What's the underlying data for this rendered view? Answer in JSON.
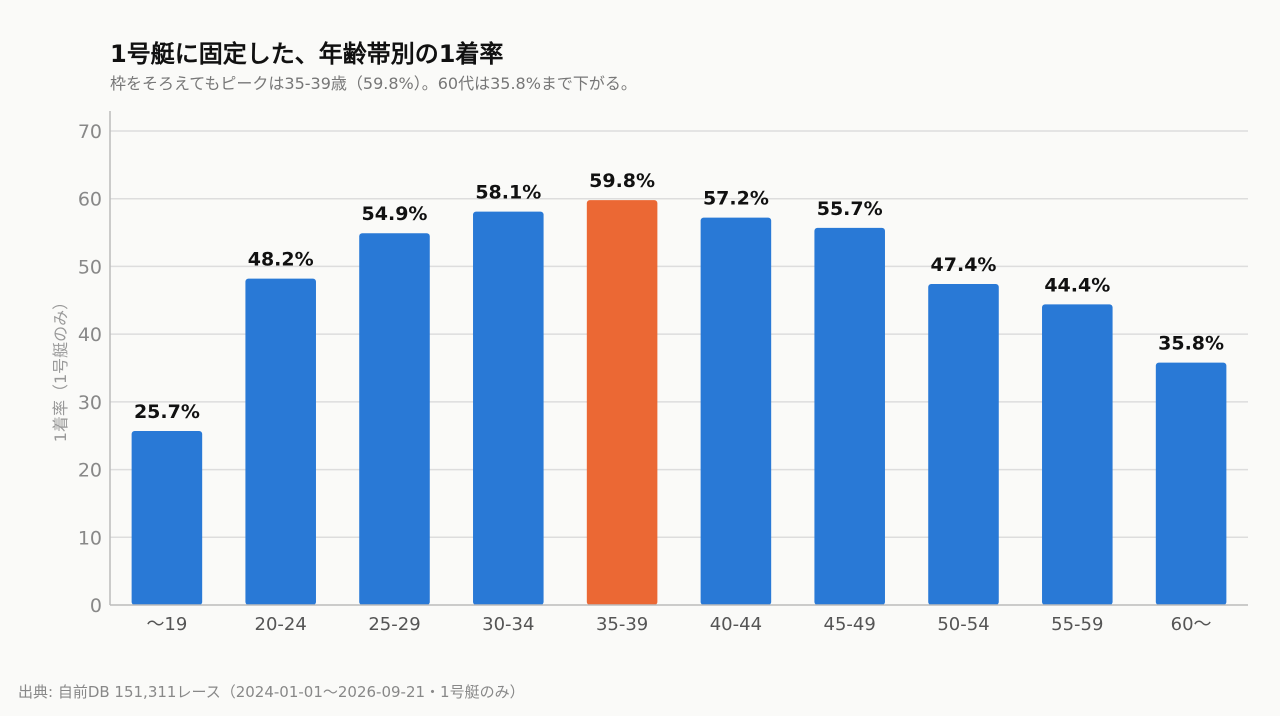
{
  "chart_data": {
    "type": "bar",
    "title": "1号艇に固定した、年齢帯別の1着率",
    "subtitle": "枠をそろえてもピークは35-39歳（59.8%）。60代は35.8%まで下がる。",
    "ylabel": "1着率（1号艇のみ）",
    "xlabel": "",
    "categories": [
      "〜19",
      "20-24",
      "25-29",
      "30-34",
      "35-39",
      "40-44",
      "45-49",
      "50-54",
      "55-59",
      "60〜"
    ],
    "values": [
      25.7,
      48.2,
      54.9,
      58.1,
      59.8,
      57.2,
      55.7,
      47.4,
      44.4,
      35.8
    ],
    "value_labels": [
      "25.7%",
      "48.2%",
      "54.9%",
      "58.1%",
      "59.8%",
      "57.2%",
      "55.7%",
      "47.4%",
      "44.4%",
      "35.8%"
    ],
    "highlight_category": "35-39",
    "ylim": [
      0,
      70
    ],
    "yticks": [
      0,
      10,
      20,
      30,
      40,
      50,
      60,
      70
    ],
    "grid": true,
    "colors": {
      "bar": "#2979d6",
      "highlight": "#eb6834",
      "grid": "#dddddd",
      "axis": "#bbbbbb"
    }
  },
  "source": "出典: 自前DB 151,311レース（2024-01-01〜2026-09-21・1号艇のみ）"
}
